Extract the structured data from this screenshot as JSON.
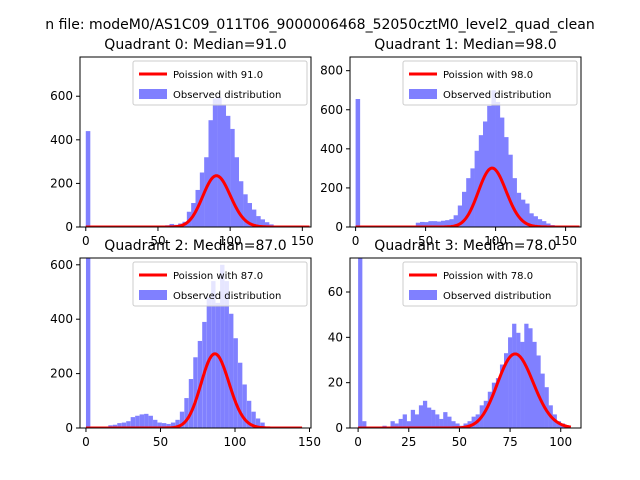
{
  "figure": {
    "suptitle": "n file: modeM0/AS1C09_011T06_9000006468_52050cztM0_level2_quad_clean"
  },
  "chart_data": [
    {
      "type": "bar",
      "title": "Quadrant 0: Median=91.0",
      "xlim": [
        -4,
        156
      ],
      "ylim": [
        0,
        780
      ],
      "xticks": [
        0,
        50,
        100,
        150
      ],
      "yticks": [
        0,
        200,
        400,
        600
      ],
      "bin_width": 3.14,
      "hist_x": [
        0,
        52,
        55,
        58,
        61,
        64,
        67,
        70,
        73,
        76,
        79,
        82,
        85,
        88,
        91,
        94,
        97,
        100,
        103,
        106,
        109,
        112,
        115,
        118,
        121,
        124,
        127,
        130
      ],
      "hist_y": [
        440,
        5,
        8,
        14,
        10,
        16,
        24,
        70,
        110,
        170,
        250,
        320,
        490,
        590,
        595,
        560,
        510,
        450,
        320,
        210,
        150,
        110,
        80,
        50,
        35,
        22,
        12,
        6
      ],
      "poisson_mean": 91.0,
      "fit_xrange": [
        0,
        155
      ],
      "legend": [
        "Poission with 91.0",
        "Observed distribution"
      ]
    },
    {
      "type": "bar",
      "title": "Quadrant 1: Median=98.0",
      "xlim": [
        -4,
        161
      ],
      "ylim": [
        0,
        870
      ],
      "xticks": [
        0,
        50,
        100,
        150
      ],
      "yticks": [
        0,
        200,
        400,
        600,
        800
      ],
      "bin_width": 3.24,
      "hist_x": [
        0,
        43,
        46,
        49,
        52,
        55,
        58,
        61,
        64,
        67,
        70,
        73,
        76,
        79,
        82,
        85,
        88,
        91,
        94,
        97,
        100,
        103,
        106,
        109,
        112,
        115,
        118,
        121,
        124,
        127,
        130,
        133,
        136,
        139
      ],
      "hist_y": [
        655,
        22,
        26,
        25,
        30,
        30,
        28,
        32,
        35,
        40,
        60,
        110,
        180,
        250,
        300,
        390,
        470,
        540,
        620,
        700,
        640,
        560,
        460,
        370,
        250,
        175,
        140,
        120,
        70,
        55,
        40,
        30,
        18,
        10
      ],
      "poisson_mean": 98.0,
      "fit_xrange": [
        0,
        160
      ],
      "legend": [
        "Poission with 98.0",
        "Observed distribution"
      ]
    },
    {
      "type": "bar",
      "title": "Quadrant 2: Median=87.0",
      "xlim": [
        -4,
        151
      ],
      "ylim": [
        0,
        625
      ],
      "xticks": [
        0,
        50,
        100,
        150
      ],
      "yticks": [
        0,
        200,
        400,
        600
      ],
      "bin_width": 2.94,
      "hist_x": [
        0,
        15,
        18,
        21,
        24,
        27,
        30,
        33,
        36,
        39,
        42,
        45,
        48,
        51,
        54,
        57,
        60,
        63,
        66,
        69,
        72,
        75,
        78,
        81,
        84,
        87,
        90,
        93,
        96,
        99,
        102,
        105,
        108,
        111,
        114,
        117
      ],
      "hist_y": [
        625,
        10,
        12,
        18,
        20,
        25,
        40,
        45,
        50,
        52,
        45,
        30,
        20,
        18,
        15,
        20,
        30,
        60,
        110,
        180,
        260,
        320,
        390,
        480,
        540,
        460,
        600,
        540,
        420,
        330,
        240,
        160,
        100,
        60,
        35,
        20
      ],
      "poisson_mean": 87.0,
      "fit_xrange": [
        0,
        145
      ],
      "legend": [
        "Poission with 87.0",
        "Observed distribution"
      ]
    },
    {
      "type": "bar",
      "title": "Quadrant 3: Median=78.0",
      "xlim": [
        -4,
        110
      ],
      "ylim": [
        0,
        75
      ],
      "xticks": [
        0,
        25,
        50,
        75,
        100
      ],
      "yticks": [
        0,
        20,
        40,
        60
      ],
      "bin_width": 2.1,
      "hist_x": [
        0,
        2,
        12,
        16,
        18,
        20,
        22,
        24,
        26,
        28,
        30,
        32,
        34,
        36,
        38,
        40,
        42,
        44,
        46,
        48,
        50,
        52,
        54,
        56,
        58,
        60,
        62,
        64,
        66,
        68,
        70,
        72,
        74,
        76,
        78,
        80,
        82,
        84,
        86,
        88,
        90,
        92,
        94,
        96,
        98,
        100
      ],
      "hist_y": [
        75,
        3,
        1,
        3,
        2,
        4,
        6,
        3,
        8,
        6,
        10,
        12,
        9,
        8,
        6,
        4,
        7,
        5,
        3,
        2,
        1,
        2,
        3,
        5,
        6,
        10,
        12,
        16,
        20,
        22,
        28,
        33,
        40,
        46,
        42,
        38,
        46,
        44,
        38,
        32,
        24,
        18,
        10,
        6,
        3,
        2
      ],
      "poisson_mean": 78.0,
      "fit_xrange": [
        0,
        105
      ],
      "legend": [
        "Poission with 78.0",
        "Observed distribution"
      ]
    }
  ],
  "style": {
    "fit_color": "#ff0000",
    "hist_color": "#8080ff",
    "text_color": "#000000"
  }
}
